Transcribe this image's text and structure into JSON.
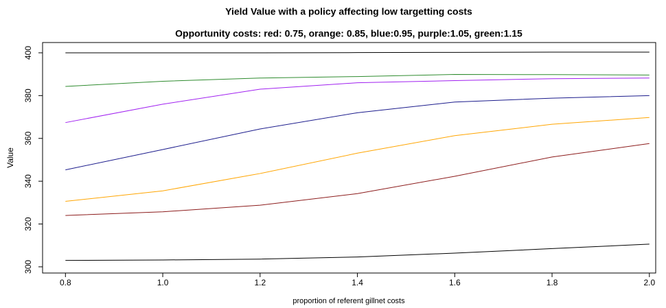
{
  "chart_data": {
    "type": "line",
    "title": "Yield Value with a policy affecting low targetting costs",
    "subtitle": "Opportunity costs: red: 0.75, orange: 0.85, blue:0.95, purple:1.05, green:1.15",
    "x_label": "proportion of referent gillnet costs",
    "y_label": "Value",
    "x": [
      0.8,
      1.0,
      1.2,
      1.4,
      1.6,
      1.8,
      2.0
    ],
    "series": [
      {
        "color": "#000000",
        "values": [
          400,
          400,
          400,
          400.1,
          400.2,
          400.3,
          400.3
        ]
      },
      {
        "color": "#2e8b2e",
        "values": [
          384.3,
          386.7,
          388.2,
          388.9,
          389.9,
          389.8,
          389.6
        ]
      },
      {
        "color": "#a020f0",
        "values": [
          367.4,
          376.0,
          383.0,
          386.0,
          387.0,
          387.9,
          388.2
        ]
      },
      {
        "color": "#1a1a8b",
        "values": [
          345.3,
          354.8,
          364.4,
          372.0,
          377.0,
          378.8,
          380.0
        ]
      },
      {
        "color": "#ffa500",
        "values": [
          330.6,
          335.5,
          343.6,
          353.1,
          361.3,
          366.6,
          369.8
        ]
      },
      {
        "color": "#8b1a1a",
        "values": [
          324.0,
          325.7,
          328.8,
          334.2,
          342.3,
          351.3,
          357.6
        ]
      },
      {
        "color": "#000000",
        "values": [
          303.0,
          303.2,
          303.6,
          304.6,
          306.4,
          308.5,
          310.6
        ]
      }
    ],
    "xlim": [
      0.753,
      2.013
    ],
    "ylim": [
      297.1,
      404.8
    ],
    "xticks": [
      0.8,
      {
        "value": 1,
        "label": "1.0"
      },
      1.2,
      1.4,
      1.6,
      1.8,
      {
        "value": 2,
        "label": "2.0"
      }
    ],
    "yticks": [
      300,
      320,
      340,
      360,
      380,
      400
    ]
  }
}
